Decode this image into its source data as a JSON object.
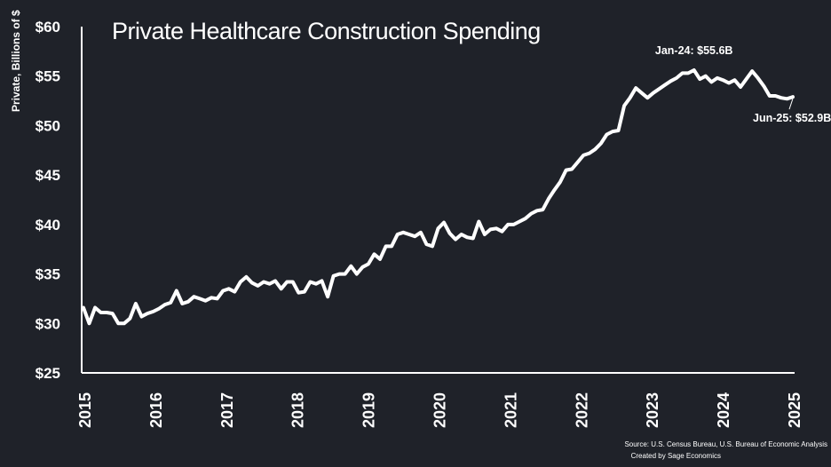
{
  "chart_data": {
    "type": "line",
    "title": "Private Healthcare Construction Spending",
    "xlabel": "",
    "ylabel": "Private, Billions of $",
    "ylim": [
      25,
      60
    ],
    "yticks": [
      25,
      30,
      35,
      40,
      45,
      50,
      55,
      60
    ],
    "ytick_labels": [
      "$25",
      "$30",
      "$35",
      "$40",
      "$45",
      "$50",
      "$55",
      "$60"
    ],
    "xlim": [
      2015,
      2025
    ],
    "xticks": [
      "2015",
      "2016",
      "2017",
      "2018",
      "2019",
      "2020",
      "2021",
      "2022",
      "2023",
      "2024",
      "2025"
    ],
    "grid": false,
    "series": [
      {
        "name": "Private Healthcare Construction Spending",
        "color": "#ffffff",
        "values": [
          31.6,
          30.0,
          31.6,
          31.1,
          31.1,
          31.0,
          30.0,
          30.0,
          30.5,
          32.0,
          30.7,
          31.0,
          31.2,
          31.5,
          31.9,
          32.1,
          33.3,
          32.0,
          32.2,
          32.7,
          32.5,
          32.3,
          32.6,
          32.5,
          33.3,
          33.5,
          33.2,
          34.2,
          34.7,
          34.1,
          33.8,
          34.2,
          34.0,
          34.3,
          33.5,
          34.2,
          34.2,
          33.1,
          33.2,
          34.2,
          34.0,
          34.3,
          32.7,
          34.8,
          35.0,
          35.0,
          35.8,
          35.0,
          35.7,
          36.0,
          37.0,
          36.5,
          37.8,
          37.8,
          39.0,
          39.2,
          39.0,
          38.8,
          39.2,
          38.0,
          37.8,
          39.6,
          40.2,
          39.1,
          38.5,
          39.0,
          38.7,
          38.6,
          40.3,
          39.0,
          39.5,
          39.6,
          39.3,
          40.0,
          40.0,
          40.3,
          40.6,
          41.1,
          41.4,
          41.5,
          42.6,
          43.5,
          44.3,
          45.5,
          45.6,
          46.3,
          47.0,
          47.2,
          47.6,
          48.2,
          49.1,
          49.4,
          49.5,
          52.0,
          52.8,
          53.8,
          53.3,
          52.8,
          53.3,
          53.7,
          54.1,
          54.5,
          54.8,
          55.3,
          55.3,
          55.6,
          54.7,
          55.0,
          54.4,
          54.8,
          54.6,
          54.3,
          54.6,
          53.9,
          54.7,
          55.5,
          54.8,
          54.0,
          53.0,
          53.0,
          52.8,
          52.7,
          52.9
        ]
      }
    ],
    "annotations": [
      {
        "text": "Jan-24: $55.6B",
        "x_index": 105,
        "value": 55.6
      },
      {
        "text": "Jun-25: $52.9B",
        "x_index": 122,
        "value": 52.9
      }
    ],
    "source_lines": [
      "Source: U.S. Census Bureau, U.S. Bureau of Economic Analysis",
      "Created by Sage Economics"
    ]
  }
}
